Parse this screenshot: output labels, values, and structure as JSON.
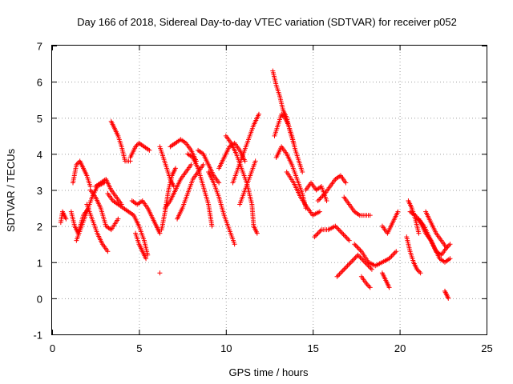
{
  "chart_data": {
    "type": "scatter",
    "title": "Day 166 of 2018, Sidereal Day-to-day VTEC variation (SDTVAR) for receiver p052",
    "xlabel": "GPS time / hours",
    "ylabel": "SDTVAR / TECUs",
    "xlim": [
      0,
      25
    ],
    "ylim": [
      -1,
      7
    ],
    "xticks": [
      0,
      5,
      10,
      15,
      20,
      25
    ],
    "yticks": [
      -1,
      0,
      1,
      2,
      3,
      4,
      5,
      6,
      7
    ],
    "xtick_labels": [
      "0",
      "5",
      "10",
      "15",
      "20",
      "25"
    ],
    "ytick_labels": [
      "-1",
      "0",
      "1",
      "2",
      "3",
      "4",
      "5",
      "6",
      "7"
    ],
    "grid": true,
    "marker": "+",
    "color": "#ff0000",
    "series": [
      {
        "name": "p052",
        "tracks": [
          [
            [
              0.5,
              2.1
            ],
            [
              0.6,
              2.4
            ],
            [
              0.8,
              2.2
            ]
          ],
          [
            [
              1.1,
              2.4
            ],
            [
              1.3,
              2.0
            ],
            [
              1.5,
              1.8
            ],
            [
              1.8,
              2.3
            ],
            [
              2.1,
              2.5
            ]
          ],
          [
            [
              1.2,
              3.2
            ],
            [
              1.4,
              3.7
            ],
            [
              1.6,
              3.8
            ],
            [
              1.8,
              3.6
            ],
            [
              2.0,
              3.4
            ],
            [
              2.2,
              3.1
            ]
          ],
          [
            [
              1.4,
              1.6
            ],
            [
              1.7,
              2.0
            ],
            [
              2.0,
              2.4
            ],
            [
              2.3,
              2.8
            ],
            [
              2.6,
              3.1
            ],
            [
              3.0,
              3.2
            ]
          ],
          [
            [
              2.0,
              2.6
            ],
            [
              2.3,
              2.2
            ],
            [
              2.6,
              1.8
            ],
            [
              2.9,
              1.5
            ],
            [
              3.2,
              1.3
            ]
          ],
          [
            [
              2.2,
              3.0
            ],
            [
              2.5,
              2.8
            ],
            [
              2.8,
              2.5
            ],
            [
              3.1,
              2.0
            ],
            [
              3.4,
              1.9
            ],
            [
              3.8,
              2.2
            ]
          ],
          [
            [
              2.5,
              3.1
            ],
            [
              2.8,
              3.2
            ],
            [
              3.1,
              3.3
            ],
            [
              3.4,
              3.0
            ],
            [
              3.7,
              2.8
            ],
            [
              4.0,
              2.6
            ]
          ],
          [
            [
              3.4,
              4.9
            ],
            [
              3.6,
              4.7
            ],
            [
              3.8,
              4.5
            ],
            [
              4.0,
              4.2
            ],
            [
              4.2,
              3.8
            ],
            [
              4.5,
              3.8
            ]
          ],
          [
            [
              4.5,
              3.9
            ],
            [
              4.8,
              4.2
            ],
            [
              5.0,
              4.3
            ],
            [
              5.3,
              4.2
            ],
            [
              5.6,
              4.1
            ]
          ],
          [
            [
              3.2,
              2.9
            ],
            [
              3.5,
              2.7
            ],
            [
              3.8,
              2.6
            ],
            [
              4.1,
              2.5
            ],
            [
              4.4,
              2.4
            ],
            [
              4.7,
              2.3
            ],
            [
              5.0,
              2.0
            ],
            [
              5.3,
              1.6
            ],
            [
              5.5,
              1.2
            ]
          ],
          [
            [
              4.6,
              2.7
            ],
            [
              4.9,
              2.6
            ],
            [
              5.2,
              2.7
            ],
            [
              5.5,
              2.5
            ],
            [
              5.8,
              2.2
            ],
            [
              6.0,
              2.0
            ],
            [
              6.2,
              1.8
            ]
          ],
          [
            [
              4.8,
              1.8
            ],
            [
              5.0,
              1.5
            ],
            [
              5.2,
              1.3
            ],
            [
              5.4,
              1.1
            ]
          ],
          [
            [
              6.2,
              0.7
            ]
          ],
          [
            [
              6.3,
              1.9
            ],
            [
              6.5,
              2.4
            ],
            [
              6.7,
              3.0
            ],
            [
              6.9,
              3.4
            ],
            [
              7.1,
              3.6
            ]
          ],
          [
            [
              6.2,
              4.2
            ],
            [
              6.4,
              3.9
            ],
            [
              6.6,
              3.6
            ],
            [
              6.8,
              3.3
            ],
            [
              7.0,
              3.1
            ]
          ],
          [
            [
              6.5,
              2.5
            ],
            [
              6.8,
              2.7
            ],
            [
              7.1,
              3.0
            ],
            [
              7.4,
              3.3
            ],
            [
              7.7,
              3.5
            ],
            [
              8.0,
              3.7
            ]
          ],
          [
            [
              6.8,
              4.2
            ],
            [
              7.1,
              4.3
            ],
            [
              7.4,
              4.4
            ],
            [
              7.7,
              4.3
            ],
            [
              8.0,
              4.1
            ],
            [
              8.3,
              3.8
            ]
          ],
          [
            [
              7.2,
              2.2
            ],
            [
              7.5,
              2.5
            ],
            [
              7.8,
              2.9
            ],
            [
              8.1,
              3.3
            ],
            [
              8.4,
              3.5
            ],
            [
              8.7,
              3.7
            ]
          ],
          [
            [
              7.8,
              4.0
            ],
            [
              8.1,
              3.9
            ],
            [
              8.4,
              3.6
            ],
            [
              8.7,
              3.1
            ],
            [
              9.0,
              2.6
            ],
            [
              9.2,
              2.0
            ]
          ],
          [
            [
              8.4,
              4.1
            ],
            [
              8.7,
              4.0
            ],
            [
              9.0,
              3.7
            ],
            [
              9.3,
              3.4
            ],
            [
              9.6,
              3.2
            ]
          ],
          [
            [
              9.0,
              3.5
            ],
            [
              9.3,
              3.2
            ],
            [
              9.6,
              2.8
            ],
            [
              9.9,
              2.3
            ],
            [
              10.2,
              1.9
            ],
            [
              10.5,
              1.5
            ]
          ],
          [
            [
              9.6,
              3.6
            ],
            [
              9.9,
              3.9
            ],
            [
              10.2,
              4.2
            ],
            [
              10.5,
              4.3
            ],
            [
              10.8,
              4.1
            ],
            [
              11.1,
              3.8
            ]
          ],
          [
            [
              10.0,
              4.5
            ],
            [
              10.3,
              4.3
            ],
            [
              10.6,
              4.0
            ],
            [
              10.9,
              3.6
            ],
            [
              11.2,
              3.2
            ],
            [
              11.5,
              2.6
            ],
            [
              11.6,
              2.0
            ],
            [
              11.8,
              1.8
            ]
          ],
          [
            [
              10.4,
              3.2
            ],
            [
              10.7,
              3.6
            ],
            [
              11.0,
              4.0
            ],
            [
              11.3,
              4.4
            ],
            [
              11.6,
              4.8
            ],
            [
              11.9,
              5.1
            ]
          ],
          [
            [
              10.8,
              2.6
            ],
            [
              11.1,
              3.0
            ],
            [
              11.4,
              3.4
            ],
            [
              11.7,
              3.8
            ]
          ],
          [
            [
              12.7,
              6.3
            ],
            [
              12.9,
              5.9
            ],
            [
              13.1,
              5.6
            ],
            [
              13.3,
              5.2
            ],
            [
              13.5,
              5.0
            ],
            [
              13.7,
              4.6
            ],
            [
              13.9,
              4.3
            ]
          ],
          [
            [
              12.8,
              4.5
            ],
            [
              13.0,
              4.8
            ],
            [
              13.2,
              5.1
            ],
            [
              13.4,
              5.0
            ],
            [
              13.6,
              4.8
            ],
            [
              13.8,
              4.5
            ],
            [
              14.0,
              4.1
            ],
            [
              14.2,
              3.8
            ],
            [
              14.4,
              3.5
            ]
          ],
          [
            [
              12.9,
              3.9
            ],
            [
              13.2,
              4.2
            ],
            [
              13.5,
              4.0
            ],
            [
              13.8,
              3.7
            ],
            [
              14.1,
              3.3
            ],
            [
              14.4,
              2.9
            ],
            [
              14.6,
              2.5
            ]
          ],
          [
            [
              13.5,
              3.5
            ],
            [
              13.9,
              3.2
            ],
            [
              14.3,
              2.8
            ],
            [
              14.7,
              2.5
            ],
            [
              15.0,
              2.3
            ],
            [
              15.4,
              2.4
            ]
          ],
          [
            [
              14.6,
              3.0
            ],
            [
              14.9,
              3.2
            ],
            [
              15.2,
              3.0
            ],
            [
              15.5,
              3.1
            ],
            [
              15.8,
              2.7
            ]
          ],
          [
            [
              15.3,
              2.7
            ],
            [
              15.7,
              2.9
            ],
            [
              16.0,
              3.1
            ],
            [
              16.3,
              3.3
            ],
            [
              16.6,
              3.4
            ],
            [
              16.9,
              3.2
            ]
          ],
          [
            [
              16.8,
              2.8
            ],
            [
              17.1,
              2.6
            ],
            [
              17.4,
              2.4
            ],
            [
              17.7,
              2.3
            ],
            [
              18.0,
              2.3
            ],
            [
              18.3,
              2.3
            ]
          ],
          [
            [
              15.1,
              1.7
            ],
            [
              15.5,
              1.9
            ],
            [
              15.9,
              1.9
            ],
            [
              16.3,
              2.0
            ],
            [
              16.7,
              1.8
            ],
            [
              17.1,
              1.6
            ]
          ],
          [
            [
              16.4,
              0.6
            ],
            [
              16.8,
              0.8
            ],
            [
              17.2,
              1.0
            ],
            [
              17.6,
              1.2
            ],
            [
              18.0,
              1.0
            ],
            [
              18.4,
              0.8
            ]
          ],
          [
            [
              17.4,
              1.5
            ],
            [
              17.8,
              1.3
            ],
            [
              18.2,
              1.0
            ],
            [
              18.6,
              0.9
            ],
            [
              19.0,
              1.0
            ],
            [
              19.4,
              1.1
            ],
            [
              19.8,
              1.3
            ]
          ],
          [
            [
              17.8,
              0.6
            ],
            [
              18.1,
              0.4
            ],
            [
              18.3,
              0.3
            ]
          ],
          [
            [
              19.0,
              0.7
            ],
            [
              19.2,
              0.5
            ],
            [
              19.4,
              0.3
            ]
          ],
          [
            [
              19.0,
              2.0
            ],
            [
              19.3,
              1.8
            ],
            [
              19.6,
              2.1
            ],
            [
              19.9,
              2.4
            ]
          ],
          [
            [
              20.5,
              2.7
            ],
            [
              20.7,
              2.5
            ],
            [
              20.9,
              2.2
            ],
            [
              21.1,
              1.8
            ]
          ],
          [
            [
              20.4,
              1.7
            ],
            [
              20.6,
              1.3
            ],
            [
              20.8,
              1.0
            ],
            [
              21.0,
              0.8
            ],
            [
              21.2,
              0.7
            ]
          ],
          [
            [
              20.6,
              2.4
            ],
            [
              20.9,
              2.3
            ],
            [
              21.2,
              2.1
            ],
            [
              21.5,
              1.8
            ],
            [
              21.8,
              1.6
            ],
            [
              22.1,
              1.3
            ],
            [
              22.4,
              1.2
            ],
            [
              22.7,
              1.4
            ]
          ],
          [
            [
              21.1,
              2.2
            ],
            [
              21.4,
              2.0
            ],
            [
              21.7,
              1.7
            ],
            [
              22.0,
              1.4
            ],
            [
              22.3,
              1.1
            ],
            [
              22.6,
              1.0
            ],
            [
              22.9,
              1.1
            ]
          ],
          [
            [
              21.5,
              2.4
            ],
            [
              21.8,
              2.1
            ],
            [
              22.1,
              1.8
            ],
            [
              22.4,
              1.6
            ],
            [
              22.7,
              1.4
            ],
            [
              22.9,
              1.5
            ]
          ],
          [
            [
              22.6,
              0.2
            ],
            [
              22.7,
              0.1
            ],
            [
              22.8,
              0.0
            ]
          ]
        ]
      }
    ]
  }
}
